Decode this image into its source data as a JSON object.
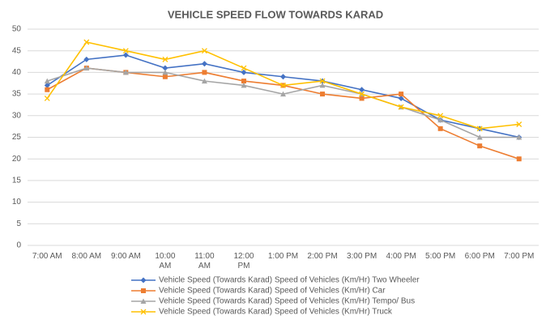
{
  "chart_data": {
    "type": "line",
    "title": "VEHICLE SPEED FLOW TOWARDS KARAD",
    "categories": [
      "7:00 AM",
      "8:00 AM",
      "9:00 AM",
      "10:00 AM",
      "11:00 AM",
      "12:00 PM",
      "1:00 PM",
      "2:00 PM",
      "3:00 PM",
      "4:00 PM",
      "5:00 PM",
      "6:00 PM",
      "7:00 PM"
    ],
    "series": [
      {
        "name": "Vehicle Speed (Towards Karad) Speed of Vehicles (Km/Hr) Two Wheeler",
        "color": "#4472c4",
        "marker": "diamond",
        "values": [
          37,
          43,
          44,
          41,
          42,
          40,
          39,
          38,
          36,
          34,
          29,
          27,
          25
        ]
      },
      {
        "name": "Vehicle Speed (Towards Karad) Speed of Vehicles (Km/Hr) Car",
        "color": "#ed7d31",
        "marker": "square",
        "values": [
          36,
          41,
          40,
          39,
          40,
          38,
          37,
          35,
          34,
          35,
          27,
          23,
          20
        ]
      },
      {
        "name": "Vehicle Speed (Towards Karad) Speed of Vehicles (Km/Hr) Tempo/ Bus",
        "color": "#a5a5a5",
        "marker": "triangle",
        "values": [
          38,
          41,
          40,
          40,
          38,
          37,
          35,
          37,
          35,
          32,
          29,
          25,
          25
        ]
      },
      {
        "name": "Vehicle Speed (Towards Karad) Speed of Vehicles (Km/Hr) Truck",
        "color": "#ffc000",
        "marker": "x",
        "values": [
          34,
          47,
          45,
          43,
          45,
          41,
          37,
          38,
          35,
          32,
          30,
          27,
          28
        ]
      }
    ],
    "ylim": [
      0,
      50
    ],
    "yticks": [
      0,
      5,
      10,
      15,
      20,
      25,
      30,
      35,
      40,
      45,
      50
    ],
    "grid": true,
    "legend": "bottom"
  }
}
